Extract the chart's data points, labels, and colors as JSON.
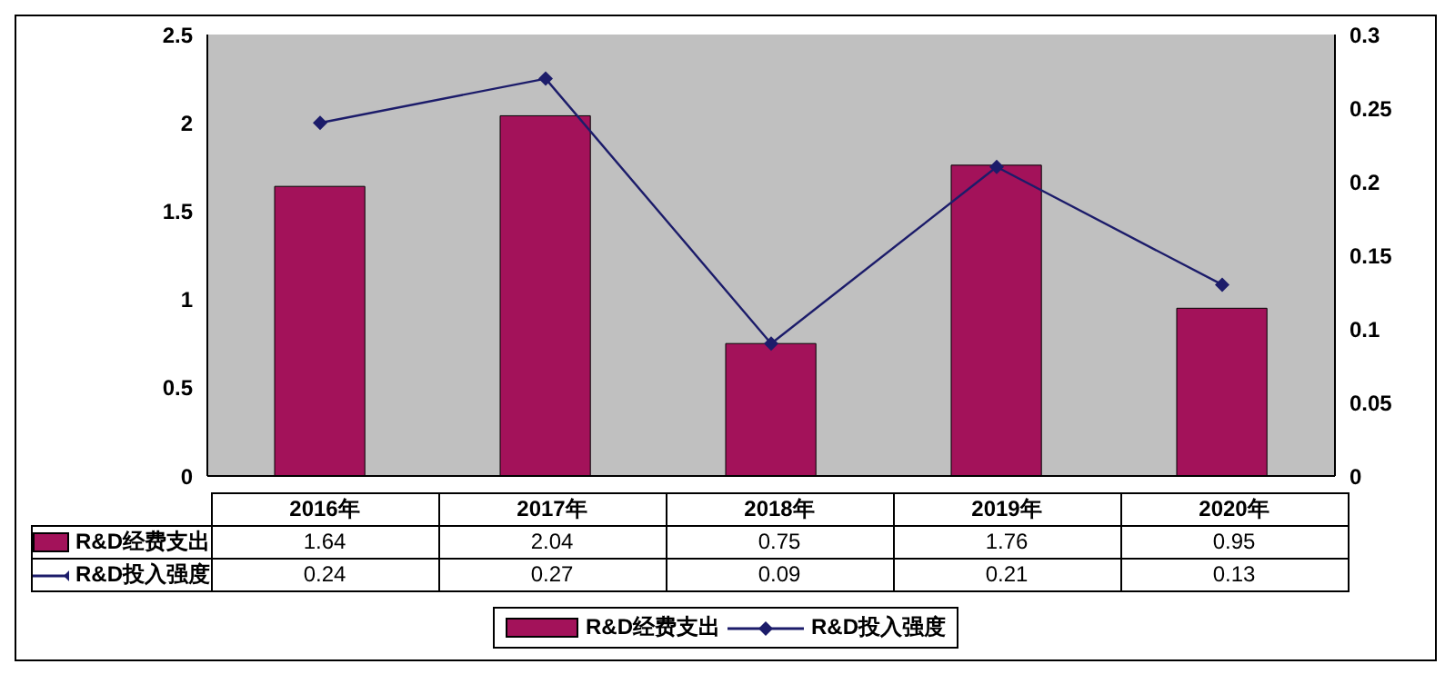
{
  "chart_data": {
    "type": "bar",
    "categories": [
      "2016年",
      "2017年",
      "2018年",
      "2019年",
      "2020年"
    ],
    "series": [
      {
        "name": "R&D经费支出",
        "color": "#a3125a",
        "values": [
          1.64,
          2.04,
          0.75,
          1.76,
          0.95
        ]
      },
      {
        "name": "R&D投入强度",
        "type": "line",
        "axis": "y2",
        "color": "#1c1c6a",
        "marker": "diamond",
        "values": [
          0.24,
          0.27,
          0.09,
          0.21,
          0.13
        ]
      }
    ],
    "ylim": [
      0,
      2.5
    ],
    "yticks": [
      0,
      0.5,
      1,
      1.5,
      2,
      2.5
    ],
    "y2lim": [
      0,
      0.3
    ],
    "y2ticks": [
      0,
      0.05,
      0.1,
      0.15,
      0.2,
      0.25,
      0.3
    ],
    "data_labels": true,
    "legend": "bottom"
  }
}
